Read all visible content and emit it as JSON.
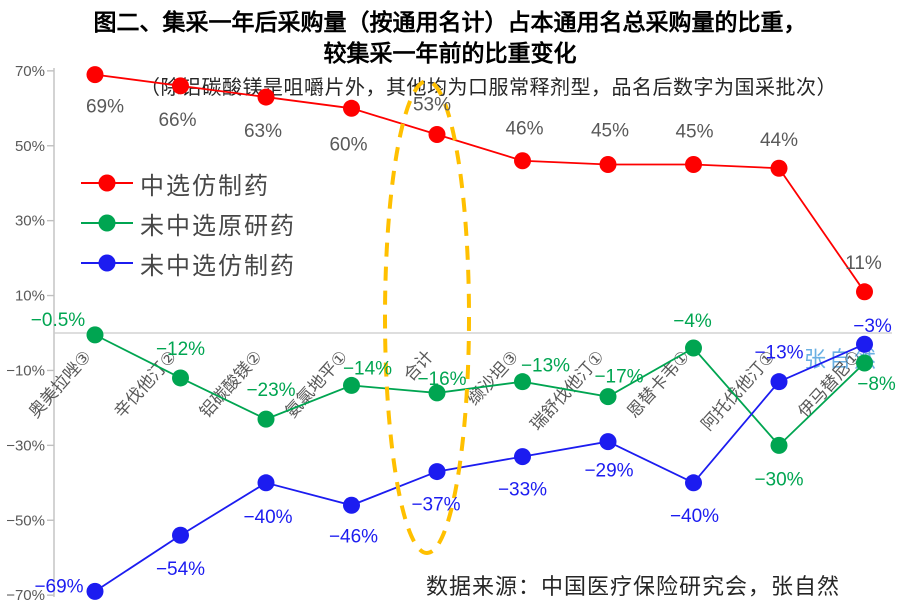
{
  "title": {
    "line1": "图二、集采一年后采购量（按通用名计）占本通用名总采购量的比重，",
    "line2": "较集采一年前的比重变化"
  },
  "subtitle": "（除铝碳酸镁是咀嚼片外，其他均为口服常释剂型，品名后数字为国采批次）",
  "source_note": "数据来源：中国医疗保险研究会，张自然",
  "watermark": "张自然",
  "legend": [
    {
      "label": "中选仿制药",
      "color": "#FE0000"
    },
    {
      "label": "未中选原研药",
      "color": "#00A551"
    },
    {
      "label": "未中选仿制药",
      "color": "#1C1CF0"
    }
  ],
  "chart_data": {
    "type": "line",
    "categories": [
      "奥美拉唑③",
      "辛伐他汀②",
      "铝碳酸镁②",
      "氨氯地平①",
      "合计",
      "缬沙坦③",
      "瑞舒伐他汀①",
      "恩替卡韦①",
      "阿托伐他汀①",
      "伊马替尼①"
    ],
    "series": [
      {
        "name": "中选仿制药",
        "color": "#FE0000",
        "label_color": "#595959",
        "values": [
          69,
          66,
          63,
          60,
          53,
          46,
          45,
          45,
          44,
          11
        ],
        "labels": [
          "69%",
          "66%",
          "63%",
          "60%",
          "53%",
          "46%",
          "45%",
          "45%",
          "44%",
          "11%"
        ]
      },
      {
        "name": "未中选原研药",
        "color": "#00A551",
        "label_color": "#00A551",
        "values": [
          -0.5,
          -12,
          -23,
          -14,
          -16,
          -13,
          -17,
          -4,
          -30,
          -8
        ],
        "labels": [
          "−0.5%",
          "−12%",
          "−23%",
          "−14%",
          "−16%",
          "−13%",
          "−17%",
          "−4%",
          "−30%",
          "−8%"
        ]
      },
      {
        "name": "未中选仿制药",
        "color": "#1C1CF0",
        "label_color": "#1C1CF0",
        "values": [
          -69,
          -54,
          -40,
          -46,
          -37,
          -33,
          -29,
          -40,
          -13,
          -3
        ],
        "labels": [
          "−69%",
          "−54%",
          "−40%",
          "−46%",
          "−37%",
          "−33%",
          "−29%",
          "−40%",
          "−13%",
          "−3%"
        ]
      }
    ],
    "y_axis": {
      "ticks": [
        "70%",
        "50%",
        "30%",
        "10%",
        "−10%",
        "−30%",
        "−50%",
        "−70%"
      ],
      "tick_values": [
        70,
        50,
        30,
        10,
        -10,
        -30,
        -50,
        -70
      ],
      "min": -70,
      "max": 70
    },
    "grid": "zero-line-only",
    "legend_position": "upper-left-inside",
    "annotation_ellipse_category": "合计",
    "highlight_color": "#FFC000"
  }
}
